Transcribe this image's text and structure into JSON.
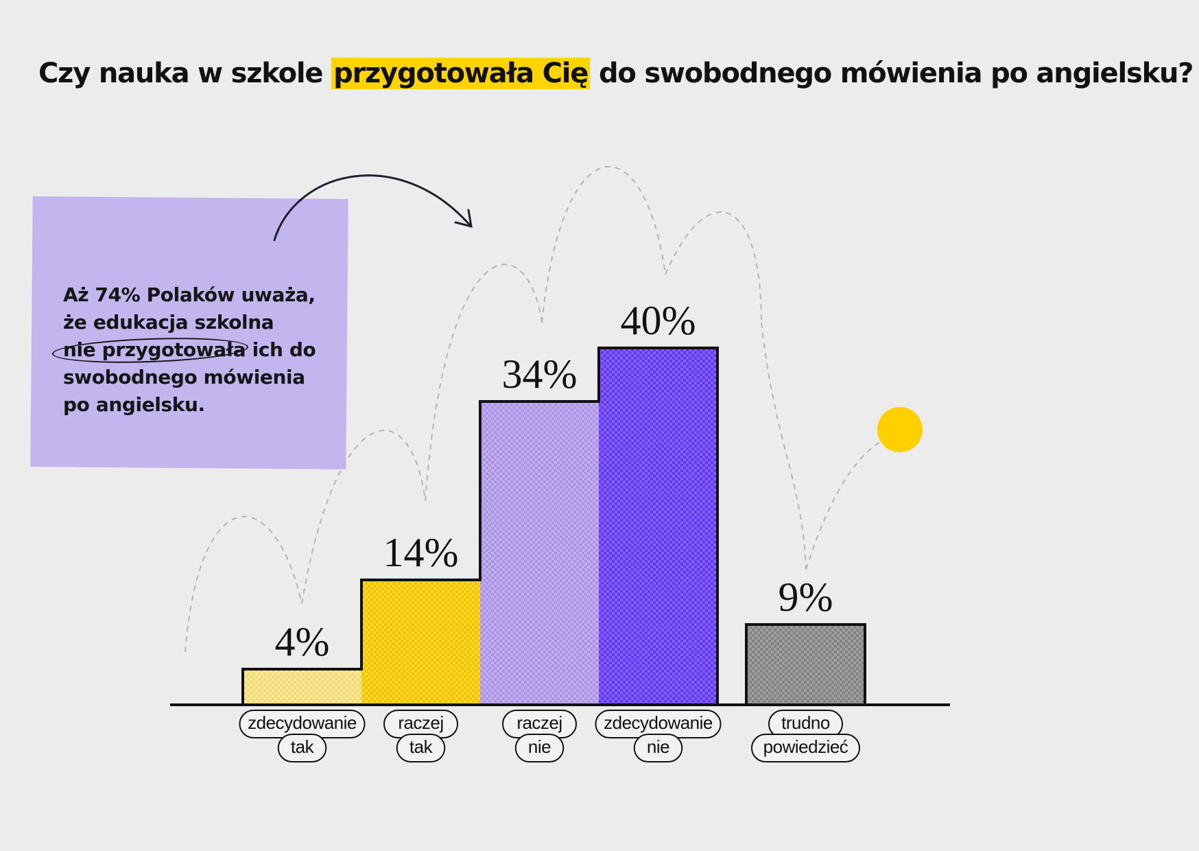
{
  "title": {
    "prefix": "Czy nauka w szkole",
    "highlight": "przygotowała Cię",
    "suffix": "do swobodnego mówienia po angielsku?"
  },
  "note": {
    "line1": "Aż 74% Polaków uważa,",
    "line2": "że edukacja szkolna",
    "line3_circled": "nie przygotowała",
    "line3_rest": "ich do",
    "line4": "swobodnego mówienia",
    "line5": "po angielsku."
  },
  "colors": {
    "accent": "#ffd400",
    "note_bg": "#c3b5ee",
    "bar_colors": [
      "#ffe780",
      "#ffd000",
      "#b49cf0",
      "#6a3cff",
      "#8a8a8a"
    ]
  },
  "chart_data": {
    "type": "bar",
    "categories": [
      [
        "zdecydowanie",
        "tak"
      ],
      [
        "raczej",
        "tak"
      ],
      [
        "raczej",
        "nie"
      ],
      [
        "zdecydowanie",
        "nie"
      ],
      [
        "trudno",
        "powiedzieć"
      ]
    ],
    "values": [
      4,
      14,
      34,
      40,
      9
    ],
    "value_labels": [
      "4%",
      "14%",
      "34%",
      "40%",
      "9%"
    ],
    "unit": "%",
    "ylim": [
      0,
      40
    ],
    "grid": false,
    "legend": "none"
  }
}
